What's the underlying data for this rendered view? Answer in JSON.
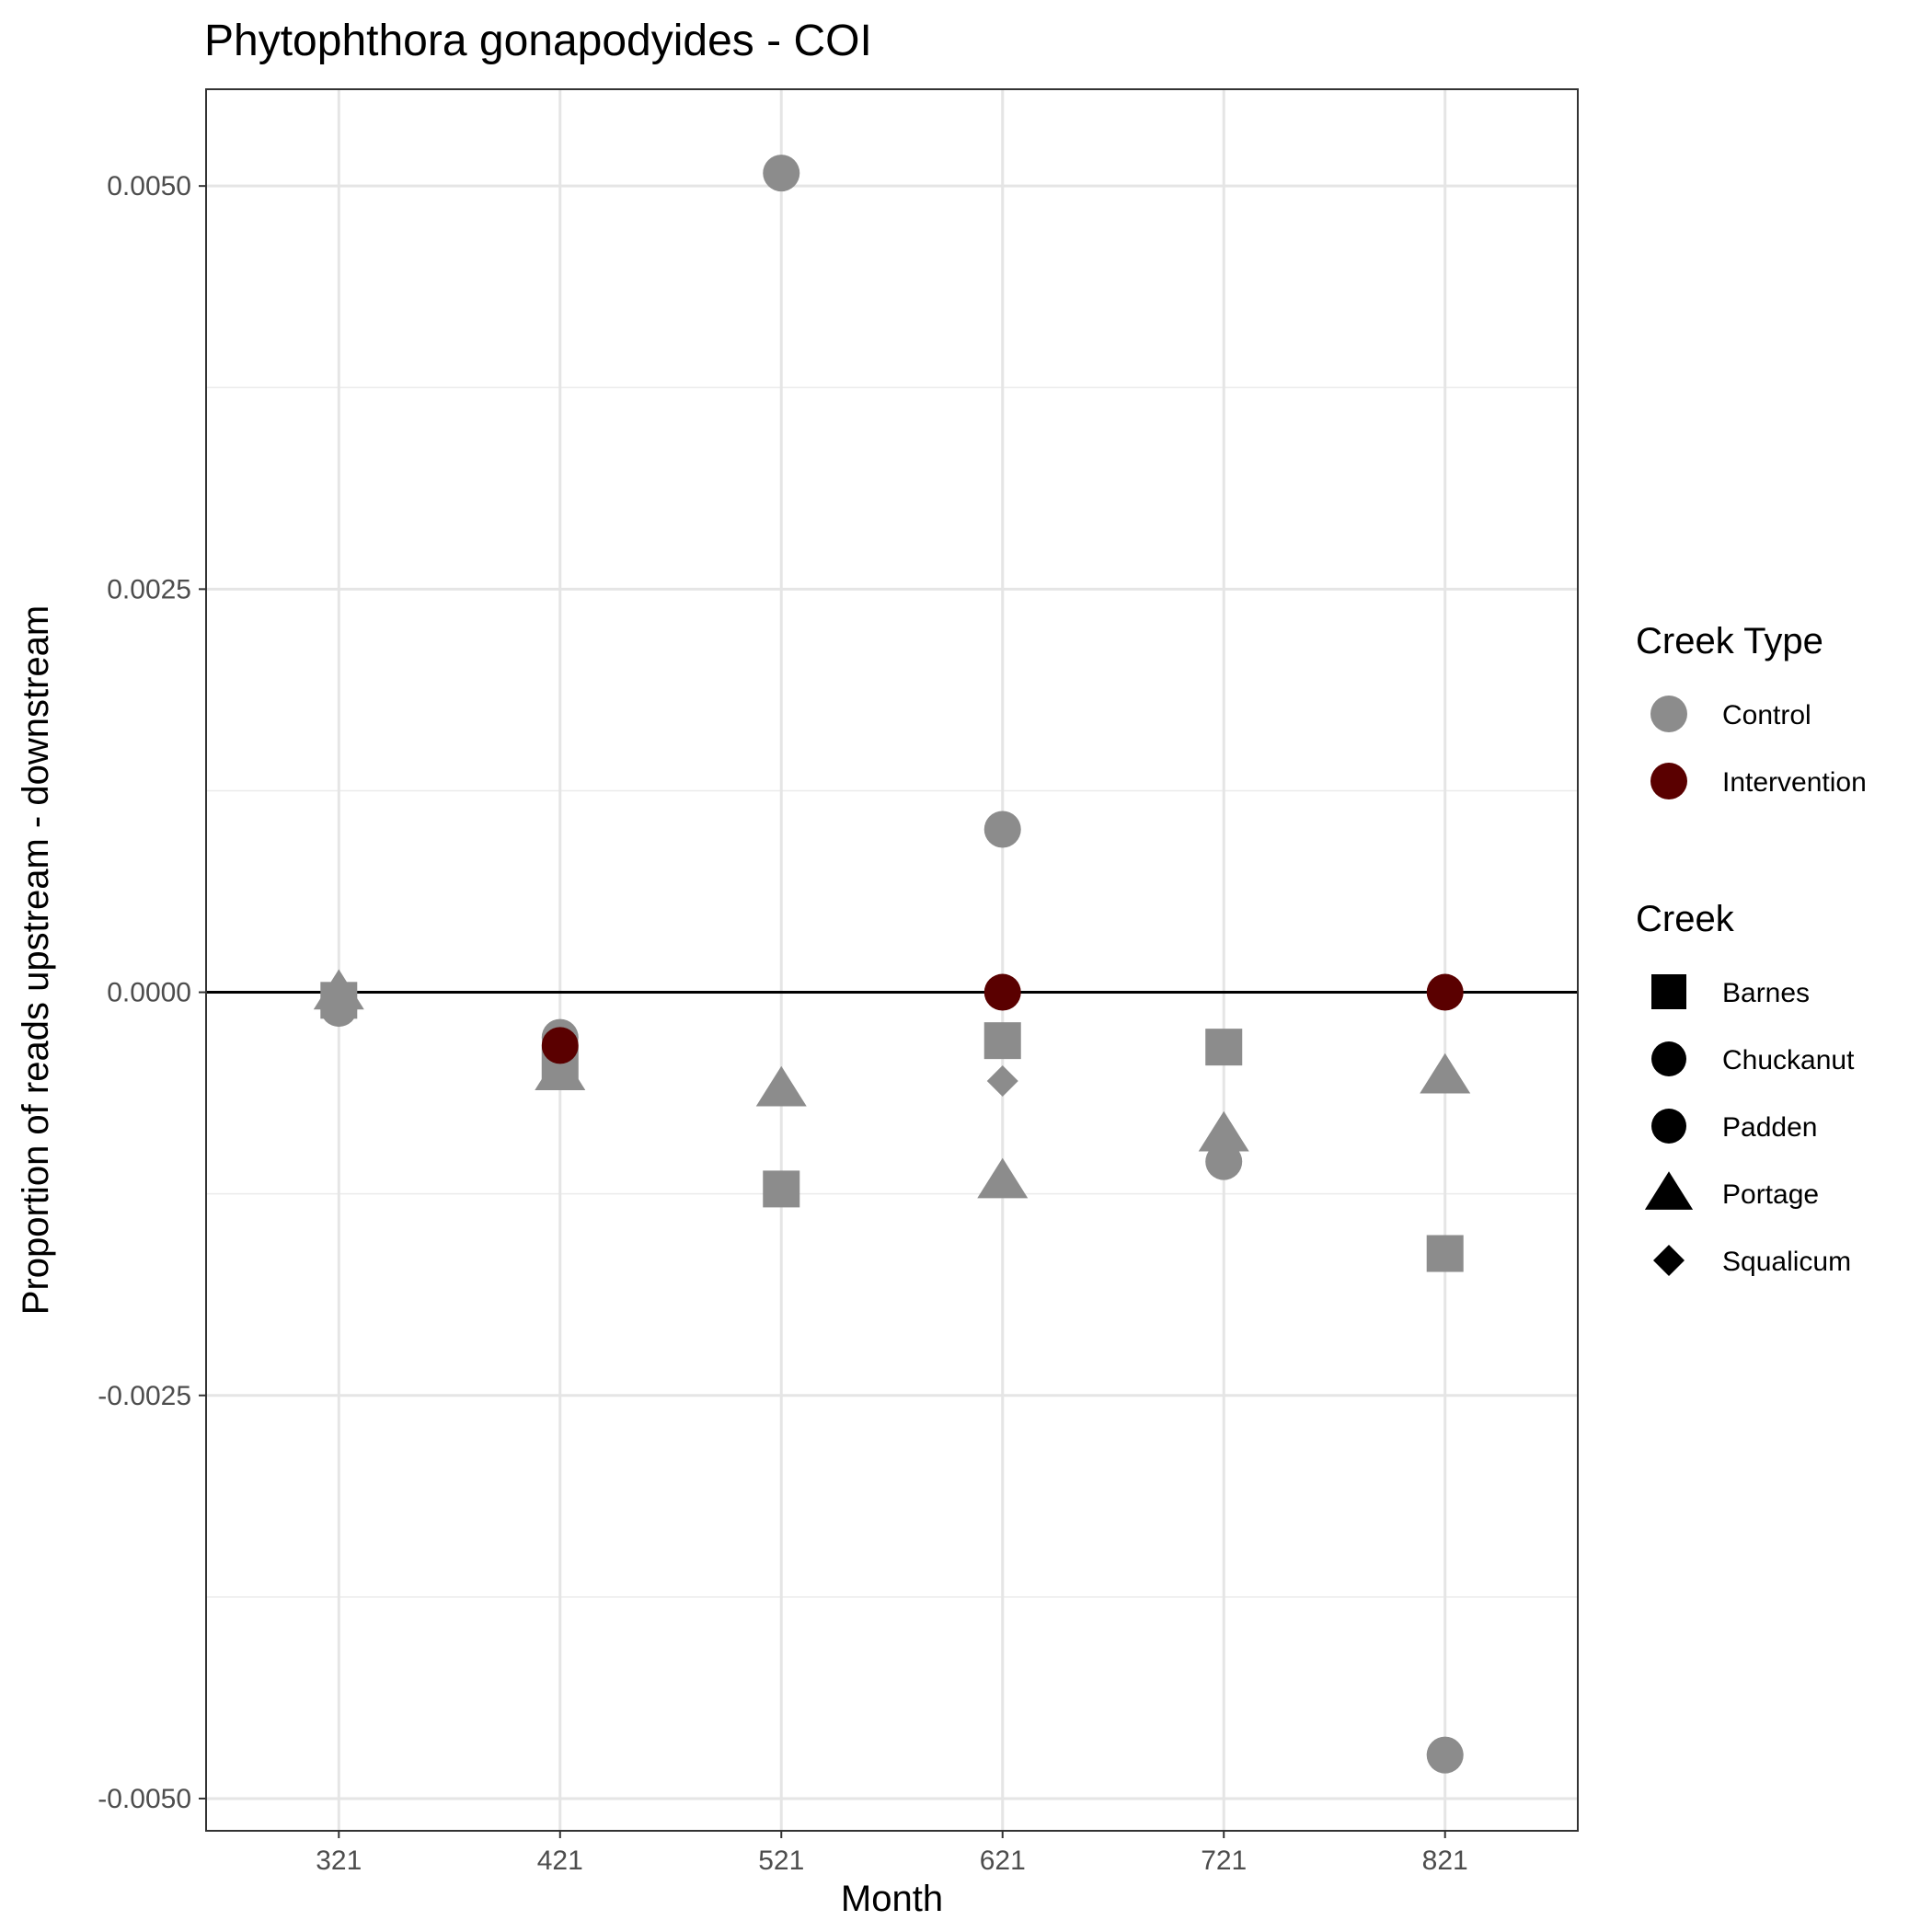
{
  "chart_data": {
    "type": "scatter",
    "title": "Phytophthora gonapodyides - COI",
    "xlabel": "Month",
    "ylabel": "Proportion of reads upstream - downstream",
    "categories": [
      "321",
      "421",
      "521",
      "621",
      "721",
      "821"
    ],
    "ylim": [
      -0.0052,
      0.0056
    ],
    "yticks": [
      -0.005,
      -0.0025,
      0.0,
      0.0025,
      0.005
    ],
    "ytick_labels": [
      "-0.0050",
      "-0.0025",
      "0.0000",
      "0.0025",
      "0.0050"
    ],
    "zero_line": true,
    "grid": true,
    "legend_position": "right",
    "colors": {
      "Control": "#8c8c8c",
      "Intervention": "#5a0000"
    },
    "legends": [
      {
        "title": "Creek Type",
        "type": "color",
        "items": [
          {
            "label": "Control",
            "color": "#8c8c8c",
            "shape": "circle"
          },
          {
            "label": "Intervention",
            "color": "#5a0000",
            "shape": "circle"
          }
        ]
      },
      {
        "title": "Creek",
        "type": "shape",
        "items": [
          {
            "label": "Barnes",
            "shape": "square"
          },
          {
            "label": "Chuckanut",
            "shape": "circle"
          },
          {
            "label": "Padden",
            "shape": "circle"
          },
          {
            "label": "Portage",
            "shape": "triangle"
          },
          {
            "label": "Squalicum",
            "shape": "diamond"
          }
        ]
      }
    ],
    "points": [
      {
        "month": "321",
        "creek": "Barnes",
        "type": "Control",
        "y": -5e-05
      },
      {
        "month": "321",
        "creek": "Chuckanut",
        "type": "Control",
        "y": -0.0001
      },
      {
        "month": "321",
        "creek": "Portage",
        "type": "Control",
        "y": 0.0
      },
      {
        "month": "421",
        "creek": "Chuckanut",
        "type": "Control",
        "y": -0.00028
      },
      {
        "month": "421",
        "creek": "Barnes",
        "type": "Control",
        "y": -0.00045
      },
      {
        "month": "421",
        "creek": "Portage",
        "type": "Control",
        "y": -0.0005
      },
      {
        "month": "421",
        "creek": "Padden",
        "type": "Intervention",
        "y": -0.00033
      },
      {
        "month": "521",
        "creek": "Chuckanut",
        "type": "Control",
        "y": 0.00508
      },
      {
        "month": "521",
        "creek": "Portage",
        "type": "Control",
        "y": -0.0006
      },
      {
        "month": "521",
        "creek": "Barnes",
        "type": "Control",
        "y": -0.00122
      },
      {
        "month": "621",
        "creek": "Chuckanut",
        "type": "Control",
        "y": 0.00101
      },
      {
        "month": "621",
        "creek": "Padden",
        "type": "Intervention",
        "y": 0.0
      },
      {
        "month": "621",
        "creek": "Barnes",
        "type": "Control",
        "y": -0.0003
      },
      {
        "month": "621",
        "creek": "Squalicum",
        "type": "Control",
        "y": -0.00055
      },
      {
        "month": "621",
        "creek": "Portage",
        "type": "Control",
        "y": -0.00117
      },
      {
        "month": "721",
        "creek": "Barnes",
        "type": "Control",
        "y": -0.00034
      },
      {
        "month": "721",
        "creek": "Portage",
        "type": "Control",
        "y": -0.00088
      },
      {
        "month": "721",
        "creek": "Chuckanut",
        "type": "Control",
        "y": -0.00105
      },
      {
        "month": "821",
        "creek": "Padden",
        "type": "Intervention",
        "y": 0.0
      },
      {
        "month": "821",
        "creek": "Portage",
        "type": "Control",
        "y": -0.00052
      },
      {
        "month": "821",
        "creek": "Barnes",
        "type": "Control",
        "y": -0.00162
      },
      {
        "month": "821",
        "creek": "Chuckanut",
        "type": "Control",
        "y": -0.00473
      }
    ]
  }
}
